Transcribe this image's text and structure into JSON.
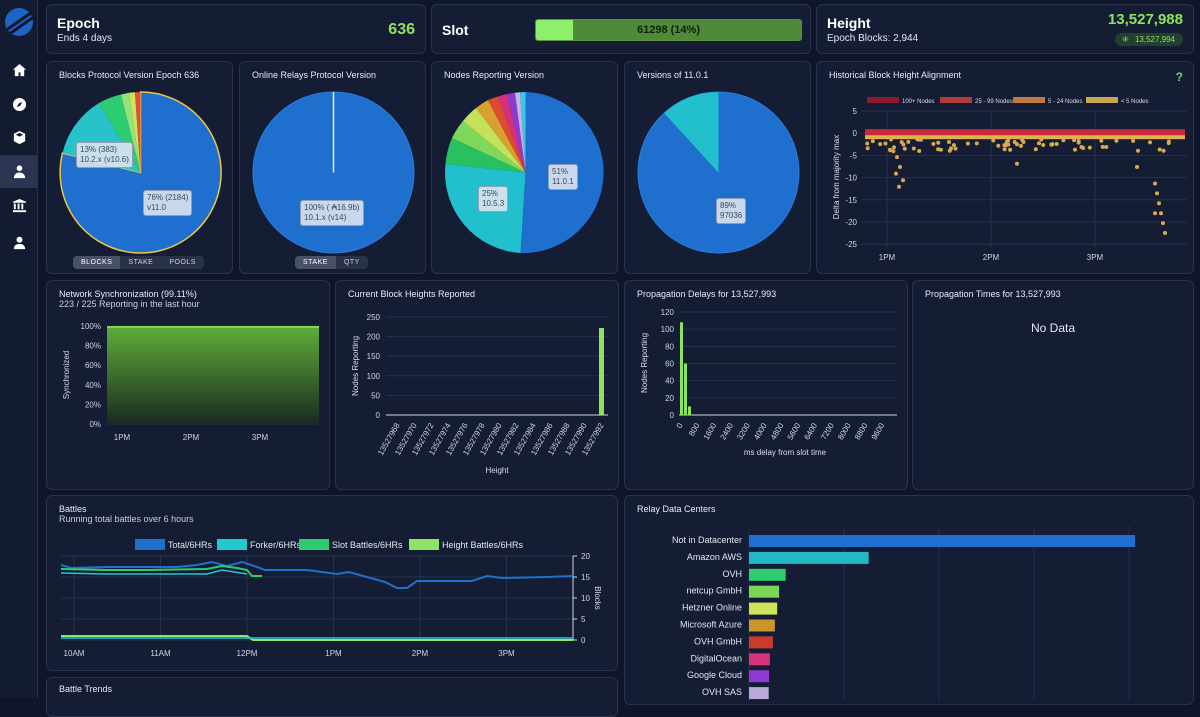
{
  "nav": [
    "home-icon",
    "compass-icon",
    "cube-icon",
    "user-tie-icon",
    "bank-icon",
    "person-icon"
  ],
  "epoch": {
    "title": "Epoch",
    "subtitle": "Ends 4 days",
    "value": "636"
  },
  "slot": {
    "title": "Slot",
    "progress_label": "61298 (14%)",
    "progress": 0.14
  },
  "height": {
    "title": "Height",
    "value": "13,527,988",
    "subtitle": "Epoch Blocks: 2,944",
    "badge": "13,527,994"
  },
  "pies": [
    {
      "title": "Blocks Protocol Version Epoch 636",
      "labels": [
        [
          "13% (383)",
          "10.2.x (v10.6)"
        ],
        [
          "76% (2184)",
          "v11.0"
        ]
      ],
      "toggle": [
        "BLOCKS",
        "STAKE",
        "POOLS"
      ],
      "toggle_active": 0
    },
    {
      "title": "Online Relays Protocol Version",
      "labels": [
        [
          "100% ( ₳16.9b)",
          "10.1.x (v14)"
        ]
      ],
      "toggle": [
        "STAKE",
        "QTY"
      ],
      "toggle_active": 0
    },
    {
      "title": "Nodes Reporting Version",
      "labels": [
        [
          "51%",
          "11.0.1"
        ],
        [
          "25%",
          "10.5.3"
        ]
      ]
    },
    {
      "title": "Versions of 11.0.1",
      "labels": [
        [
          "89%",
          "97036"
        ]
      ]
    }
  ],
  "hist": {
    "title": "Historical Block Height Alignment",
    "help": "?",
    "legend": [
      "100+ Nodes",
      "25 - 99 Nodes",
      "5 - 24 Nodes",
      "< 5 Nodes"
    ],
    "legend_colors": [
      "#8b1a2c",
      "#b23a3a",
      "#c27845",
      "#c7a64e"
    ],
    "ylabel": "Delta from majority max",
    "yticks": [
      "5",
      "0",
      "-5",
      "-10",
      "-15",
      "-20",
      "-25"
    ],
    "xticks": [
      "1PM",
      "2PM",
      "3PM"
    ]
  },
  "sync": {
    "title": "Network Synchronization (99.11%)",
    "subtitle": "223 / 225 Reporting in the last hour",
    "ylabel": "Synchronized",
    "yticks": [
      "100%",
      "80%",
      "60%",
      "40%",
      "20%",
      "0%"
    ],
    "xticks": [
      "1PM",
      "2PM",
      "3PM"
    ]
  },
  "heights": {
    "title": "Current Block Heights Reported",
    "ylabel": "Nodes Reporting",
    "xlabel": "Height",
    "yticks": [
      "250",
      "200",
      "150",
      "100",
      "50",
      "0"
    ],
    "xticks": [
      "13527968",
      "13527970",
      "13527972",
      "13527974",
      "13527976",
      "13527978",
      "13527980",
      "13527982",
      "13527984",
      "13527986",
      "13527988",
      "13527990",
      "13527992"
    ]
  },
  "delays": {
    "title": "Propagation Delays for 13,527,993",
    "ylabel": "Nodes Reporting",
    "xlabel": "ms delay from slot time",
    "yticks": [
      "120",
      "100",
      "80",
      "60",
      "40",
      "20",
      "0"
    ],
    "xticks": [
      "0",
      "800",
      "1600",
      "2400",
      "3200",
      "4000",
      "4800",
      "5600",
      "6400",
      "7200",
      "8000",
      "8800",
      "9600"
    ]
  },
  "times": {
    "title": "Propagation Times for 13,527,993",
    "empty": "No Data"
  },
  "battles": {
    "title": "Battles",
    "subtitle": "Running total battles over 6 hours",
    "legend": [
      "Total/6HRs",
      "Forker/6HRs",
      "Slot Battles/6HRs",
      "Height Battles/6HRs"
    ],
    "legend_colors": [
      "#1f6fcf",
      "#22c7d0",
      "#2ecc71",
      "#8fe36a"
    ],
    "yticks": [
      "20",
      "15",
      "10",
      "5",
      "0"
    ],
    "ylabel": "Blocks",
    "xticks": [
      "10AM",
      "11AM",
      "12PM",
      "1PM",
      "2PM",
      "3PM"
    ]
  },
  "trends": {
    "title": "Battle Trends"
  },
  "chart_data": [
    {
      "type": "bar",
      "title": "Current Block Heights Reported",
      "xlabel": "Height",
      "ylabel": "Nodes Reporting",
      "ylim": [
        0,
        250
      ],
      "categories": [
        "13527992"
      ],
      "values": [
        222
      ]
    },
    {
      "type": "bar",
      "title": "Propagation Delays for 13,527,993",
      "xlabel": "ms delay from slot time",
      "ylabel": "Nodes Reporting",
      "ylim": [
        0,
        120
      ],
      "x": [
        0,
        200,
        400
      ],
      "values": [
        108,
        60,
        10
      ]
    },
    {
      "type": "bar",
      "title": "Relay Data Centers",
      "orientation": "horizontal",
      "categories": [
        "Not in Datacenter",
        "Amazon AWS",
        "OVH",
        "netcup GmbH",
        "Hetzner Online",
        "Microsoft Azure",
        "OVH GmbH",
        "DigitalOcean",
        "Google Cloud",
        "OVH SAS"
      ],
      "values": [
        100,
        31,
        9.5,
        7.8,
        7.3,
        6.7,
        6.2,
        5.4,
        5.2,
        5.1
      ],
      "colors": [
        "#1f6fcf",
        "#22b9c7",
        "#2ecc71",
        "#7ad55a",
        "#cfe35a",
        "#c9952c",
        "#c93c2c",
        "#d8337a",
        "#8e3ad0",
        "#b8a9d8"
      ]
    }
  ]
}
